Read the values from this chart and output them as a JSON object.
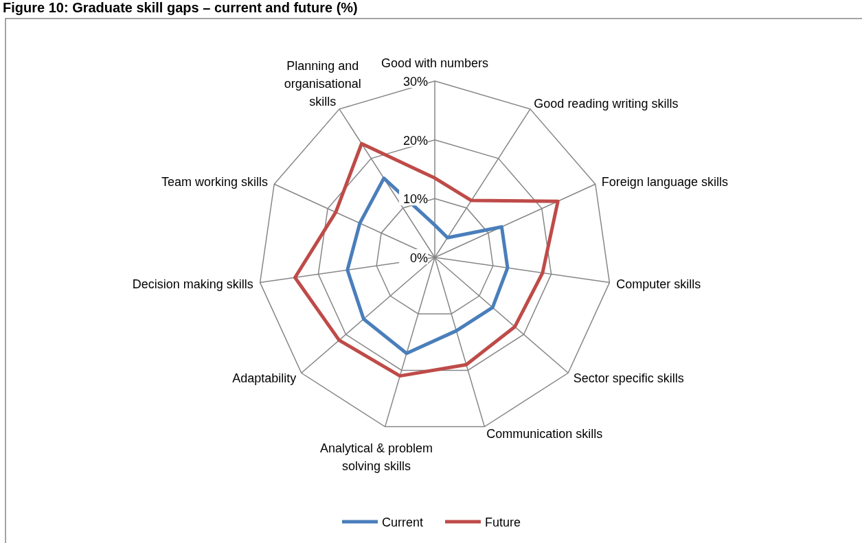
{
  "chart_data": {
    "type": "radar",
    "title": "Figure 10: Graduate skill gaps – current and future (%)",
    "categories": [
      "Good with numbers",
      "Good reading writing skills",
      "Foreign language skills",
      "Computer skills",
      "Sector specific skills",
      "Communication skills",
      "Analytical & problem solving skills",
      "Adaptability",
      "Decision making skills",
      "Team working skills",
      "Planning and organisational skills"
    ],
    "series": [
      {
        "name": "Current",
        "color": "#4a7ebb",
        "values": [
          5.5,
          4,
          12.5,
          12.5,
          13,
          13,
          17,
          16,
          15,
          14,
          16
        ]
      },
      {
        "name": "Future",
        "color": "#be4b48",
        "values": [
          13.5,
          11.5,
          23,
          18.5,
          18,
          19,
          21,
          21.5,
          24,
          18.5,
          23
        ]
      }
    ],
    "ylim": [
      0,
      30
    ],
    "yticks": [
      {
        "value": 0,
        "label": "0%"
      },
      {
        "value": 10,
        "label": "10%"
      },
      {
        "value": 20,
        "label": "20%"
      },
      {
        "value": 30,
        "label": "30%"
      }
    ],
    "legend": "bottom",
    "line_style": "solid",
    "marker": "none"
  }
}
